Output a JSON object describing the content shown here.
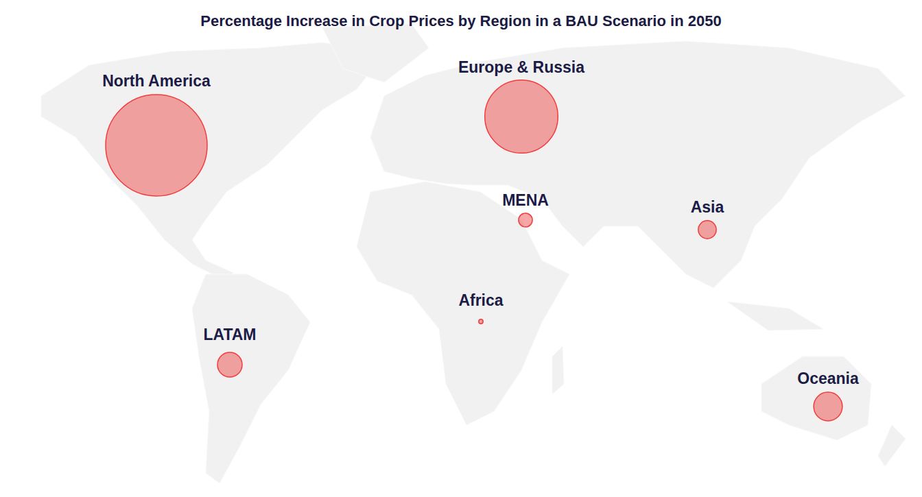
{
  "chart_data": {
    "type": "bubble",
    "title": "Percentage Increase in Crop Prices by Region in a BAU Scenario in 2050",
    "categories": [
      "North America",
      "Europe & Russia",
      "MENA",
      "Asia",
      "Africa",
      "LATAM",
      "Oceania"
    ],
    "values": [
      54,
      28,
      1,
      1.7,
      0.1,
      3.2,
      4.3
    ],
    "color": "#f03c3c"
  }
}
